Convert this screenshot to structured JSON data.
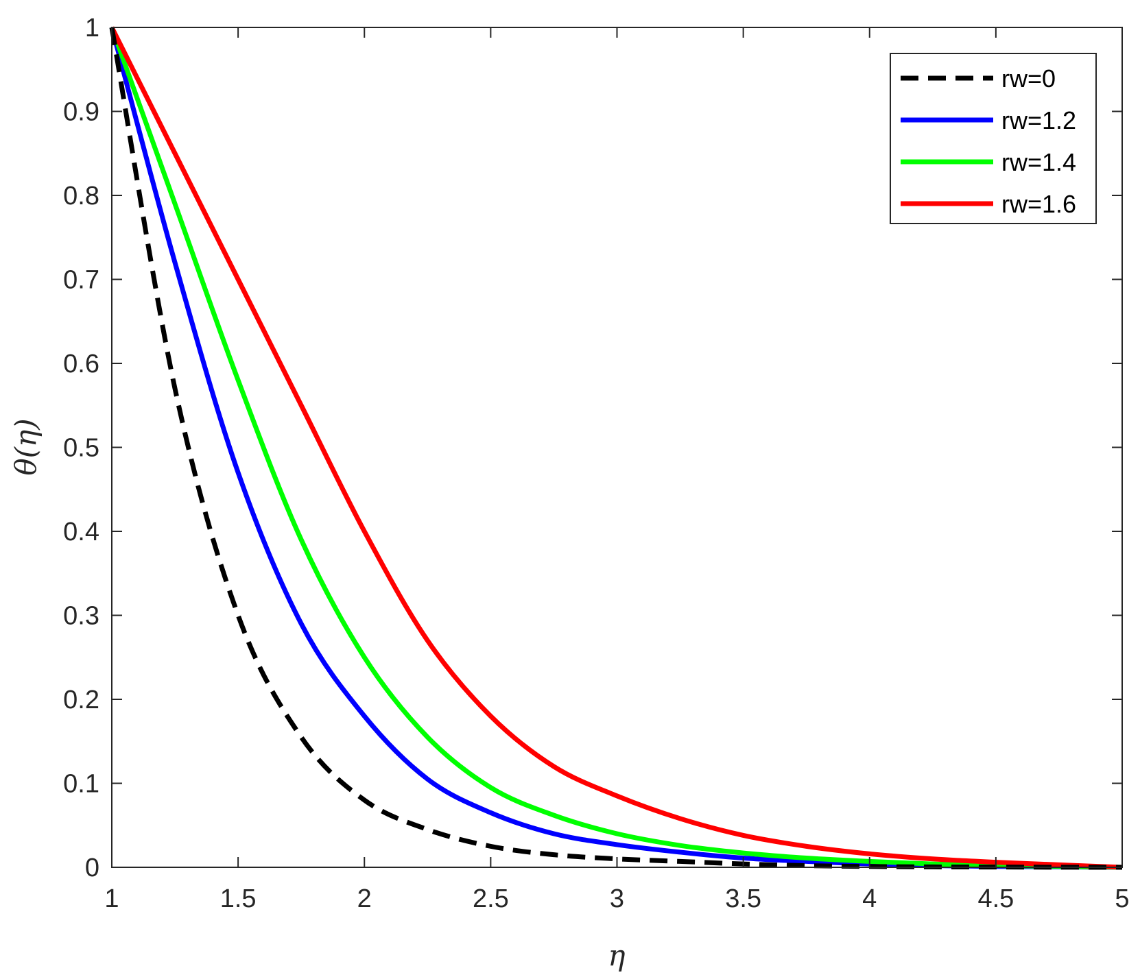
{
  "chart_data": {
    "type": "line",
    "title": "",
    "xlabel": "η",
    "ylabel": "θ(η)",
    "xlim": [
      1,
      5
    ],
    "ylim": [
      0,
      1
    ],
    "xticks": [
      "1",
      "1.5",
      "2",
      "2.5",
      "3",
      "3.5",
      "4",
      "4.5",
      "5"
    ],
    "yticks": [
      "0",
      "0.1",
      "0.2",
      "0.3",
      "0.4",
      "0.5",
      "0.6",
      "0.7",
      "0.8",
      "0.9",
      "1"
    ],
    "grid": false,
    "legend_position": "top-right",
    "x": [
      1,
      1.25,
      1.5,
      1.75,
      2,
      2.25,
      2.5,
      2.75,
      3,
      3.25,
      3.5,
      3.75,
      4,
      4.25,
      4.5,
      4.75,
      5
    ],
    "series": [
      {
        "name": "rw=0",
        "color": "#000000",
        "dash": true,
        "values": [
          1.0,
          0.57,
          0.3,
          0.155,
          0.08,
          0.045,
          0.025,
          0.015,
          0.01,
          0.007,
          0.004,
          0.002,
          0.001,
          0.0005,
          0.0003,
          0.0001,
          0
        ]
      },
      {
        "name": "rw=1.2",
        "color": "#0000ff",
        "dash": false,
        "values": [
          1.0,
          0.72,
          0.47,
          0.29,
          0.18,
          0.105,
          0.065,
          0.04,
          0.027,
          0.018,
          0.011,
          0.007,
          0.004,
          0.002,
          0.001,
          0.0005,
          0
        ]
      },
      {
        "name": "rw=1.4",
        "color": "#00ff00",
        "dash": false,
        "values": [
          1.0,
          0.79,
          0.58,
          0.39,
          0.25,
          0.155,
          0.095,
          0.062,
          0.04,
          0.026,
          0.017,
          0.011,
          0.007,
          0.004,
          0.002,
          0.001,
          0
        ]
      },
      {
        "name": "rw=1.6",
        "color": "#ff0000",
        "dash": false,
        "values": [
          1.0,
          0.85,
          0.7,
          0.55,
          0.4,
          0.27,
          0.18,
          0.12,
          0.085,
          0.058,
          0.038,
          0.025,
          0.016,
          0.01,
          0.006,
          0.003,
          0
        ]
      }
    ]
  }
}
